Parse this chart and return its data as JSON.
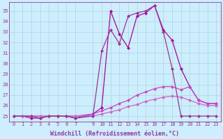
{
  "xlabel": "Windchill (Refroidissement éolien,°C)",
  "xlim": [
    -0.5,
    23.5
  ],
  "ylim": [
    24.5,
    35.8
  ],
  "yticks": [
    25,
    26,
    27,
    28,
    29,
    30,
    31,
    32,
    33,
    34,
    35
  ],
  "xticks": [
    0,
    1,
    2,
    3,
    4,
    5,
    6,
    7,
    9,
    10,
    11,
    12,
    13,
    14,
    15,
    16,
    17,
    18,
    19,
    20,
    21,
    22,
    23
  ],
  "bg_color": "#cceeff",
  "grid_color": "#aacccc",
  "spine_color": "#993399",
  "tick_color": "#993399",
  "label_color": "#993399",
  "lines": [
    {
      "x": [
        0,
        1,
        2,
        3,
        4,
        5,
        6,
        7,
        9,
        10,
        11,
        12,
        13,
        14,
        15,
        16,
        17,
        18,
        19,
        20,
        21,
        22,
        23
      ],
      "y": [
        25,
        25,
        24.8,
        24.8,
        25.0,
        25.0,
        25.0,
        24.8,
        25.2,
        25.8,
        35.0,
        32.8,
        31.5,
        34.5,
        34.8,
        35.5,
        33.2,
        32.2,
        29.5,
        27.8,
        26.5,
        26.2,
        26.2
      ],
      "color": "#aa00aa",
      "marker": "D",
      "markersize": 2.5,
      "linewidth": 0.9
    },
    {
      "x": [
        0,
        1,
        2,
        3,
        4,
        5,
        6,
        7,
        9,
        10,
        11,
        12,
        13,
        14,
        15,
        16,
        17,
        18,
        19,
        20,
        21,
        22,
        23
      ],
      "y": [
        25.0,
        25.0,
        25.0,
        25.0,
        25.0,
        25.0,
        25.0,
        25.0,
        25.2,
        25.5,
        25.8,
        26.2,
        26.5,
        27.0,
        27.3,
        27.6,
        27.8,
        27.8,
        27.5,
        27.8,
        26.5,
        26.2,
        26.2
      ],
      "color": "#cc44cc",
      "marker": "D",
      "markersize": 2.5,
      "linewidth": 0.9
    },
    {
      "x": [
        0,
        1,
        2,
        3,
        4,
        5,
        6,
        7,
        9,
        10,
        11,
        12,
        13,
        14,
        15,
        16,
        17,
        18,
        19,
        20,
        21,
        22,
        23
      ],
      "y": [
        25.0,
        25.0,
        25.0,
        25.0,
        25.0,
        25.0,
        25.0,
        25.0,
        25.0,
        25.2,
        25.4,
        25.6,
        25.9,
        26.1,
        26.4,
        26.6,
        26.8,
        26.9,
        26.8,
        26.5,
        26.2,
        26.0,
        26.0
      ],
      "color": "#cc66cc",
      "marker": "D",
      "markersize": 2.5,
      "linewidth": 0.9
    },
    {
      "x": [
        0,
        2,
        3,
        4,
        5,
        6,
        7,
        9,
        10,
        11,
        12,
        13,
        14,
        15,
        16,
        17,
        18,
        19,
        20,
        21,
        22,
        23
      ],
      "y": [
        25.0,
        25.0,
        24.8,
        25.0,
        25.0,
        25.0,
        24.8,
        25.0,
        31.2,
        33.2,
        31.9,
        34.5,
        34.8,
        35.0,
        35.5,
        33.0,
        29.5,
        25.0,
        25.0,
        25.0,
        25.0,
        25.0
      ],
      "color": "#993399",
      "marker": "D",
      "markersize": 2.5,
      "linewidth": 0.9
    }
  ]
}
